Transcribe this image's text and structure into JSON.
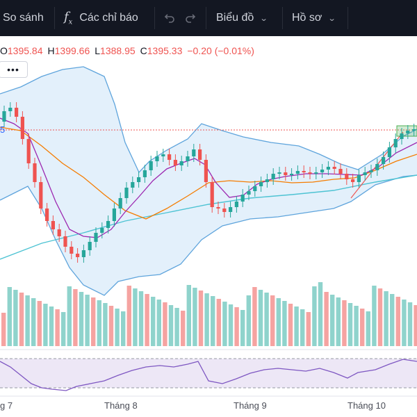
{
  "toolbar": {
    "compare_label": "So sánh",
    "indicators_label": "Các chỉ báo",
    "indicators_icon": "fx-icon",
    "undo_icon": "undo-icon",
    "redo_icon": "redo-icon",
    "chart_type_label": "Biểu đồ",
    "profile_label": "Hồ sơ",
    "dropdown_icon": "chevron-down-icon"
  },
  "legend": {
    "open_key": "O",
    "open_value": "1395.84",
    "high_key": "H",
    "high_value": "1399.66",
    "low_key": "L",
    "low_value": "1388.95",
    "close_key": "C",
    "close_value": "1395.33",
    "change": "−0.20 (−0.01%)"
  },
  "more_button": {
    "label": "•••",
    "icon": "more-dots-icon"
  },
  "price_tag_fragment": "5",
  "time_axis": {
    "labels": [
      "g 7",
      "Tháng 8",
      "Tháng 9",
      "Tháng 10"
    ]
  },
  "colors": {
    "up": "#26a69a",
    "down": "#ef5350",
    "up_volume": "#8fd3cc",
    "down_volume": "#f5a3a1",
    "bollinger": "#5ea4dc",
    "bollinger_fill": "#e3f0fb",
    "ma_short": "#9c27b0",
    "ma_long": "#f57c00",
    "ma_trend": "#4dc3d3",
    "rsi_line": "#7e57c2",
    "rsi_band": "#ede7f6"
  }
}
